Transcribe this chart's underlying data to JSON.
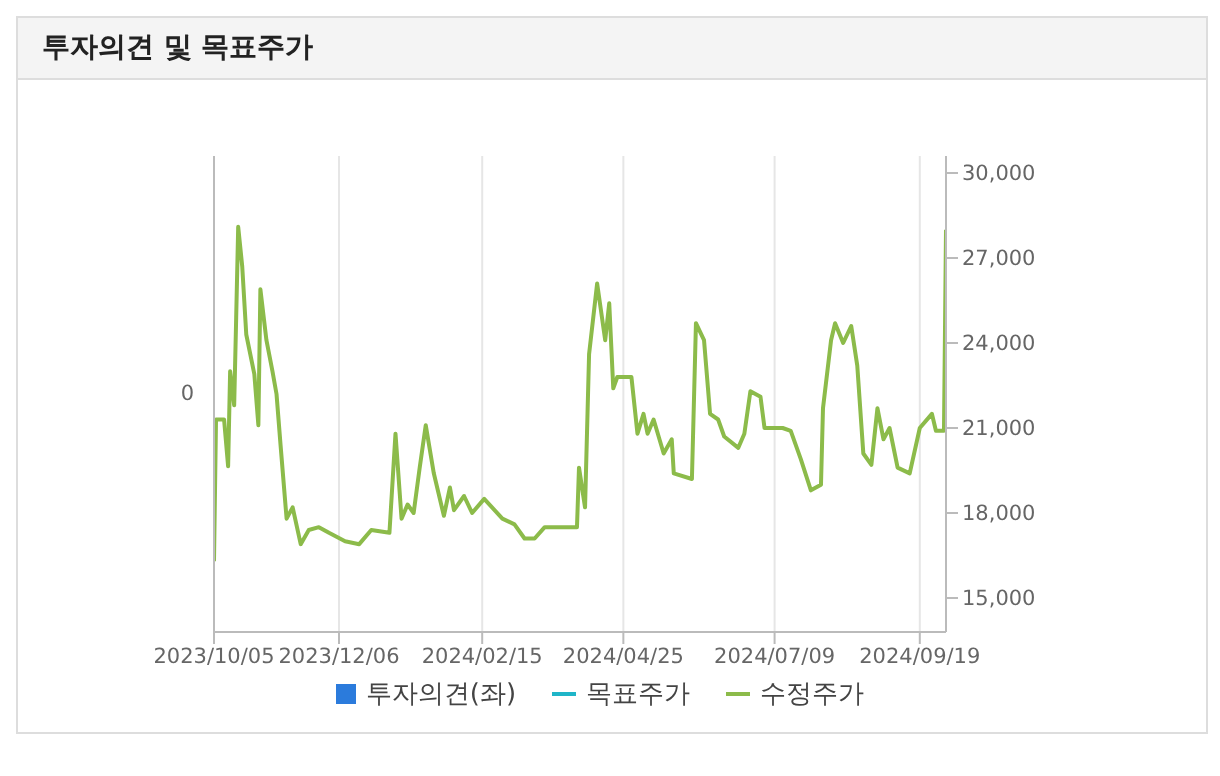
{
  "chart_data": {
    "type": "line",
    "title": "투자의견 및 목표주가",
    "x": [
      "2023-10-05",
      "2023-10-06",
      "2023-10-10",
      "2023-10-12",
      "2023-10-13",
      "2023-10-15",
      "2023-10-16",
      "2023-10-17",
      "2023-10-19",
      "2023-10-21",
      "2023-10-25",
      "2023-10-27",
      "2023-10-28",
      "2023-10-31",
      "2023-11-03",
      "2023-11-05",
      "2023-11-07",
      "2023-11-10",
      "2023-11-13",
      "2023-11-17",
      "2023-11-21",
      "2023-11-26",
      "2023-12-01",
      "2023-12-09",
      "2023-12-16",
      "2023-12-22",
      "2023-12-31",
      "2024-01-03",
      "2024-01-06",
      "2024-01-09",
      "2024-01-12",
      "2024-01-15",
      "2024-01-18",
      "2024-01-22",
      "2024-01-27",
      "2024-01-30",
      "2024-02-01",
      "2024-02-06",
      "2024-02-10",
      "2024-02-16",
      "2024-02-25",
      "2024-03-02",
      "2024-03-07",
      "2024-03-12",
      "2024-03-17",
      "2024-03-24",
      "2024-04-02",
      "2024-04-03",
      "2024-04-06",
      "2024-04-08",
      "2024-04-12",
      "2024-04-16",
      "2024-04-18",
      "2024-04-20",
      "2024-04-22",
      "2024-04-29",
      "2024-05-02",
      "2024-05-05",
      "2024-05-07",
      "2024-05-10",
      "2024-05-15",
      "2024-05-19",
      "2024-05-20",
      "2024-05-29",
      "2024-05-31",
      "2024-06-04",
      "2024-06-07",
      "2024-06-11",
      "2024-06-14",
      "2024-06-21",
      "2024-06-24",
      "2024-06-27",
      "2024-07-02",
      "2024-07-04",
      "2024-07-13",
      "2024-07-17",
      "2024-07-22",
      "2024-07-27",
      "2024-08-01",
      "2024-08-02",
      "2024-08-06",
      "2024-08-08",
      "2024-08-12",
      "2024-08-16",
      "2024-08-19",
      "2024-08-22",
      "2024-08-26",
      "2024-08-29",
      "2024-09-01",
      "2024-09-04",
      "2024-09-08",
      "2024-09-14",
      "2024-09-19",
      "2024-09-25",
      "2024-09-27",
      "2024-10-01",
      "2024-10-02"
    ],
    "series": [
      {
        "name": "투자의견(좌)",
        "type": "bar",
        "color": "#2b7bdc",
        "values": [
          null,
          null,
          null,
          null,
          null,
          null,
          null,
          null,
          null,
          null,
          null,
          null,
          null,
          null,
          null,
          null,
          null,
          null,
          null,
          null,
          null,
          null,
          null,
          null,
          null,
          null,
          null,
          null,
          null,
          null,
          null,
          null,
          null,
          null,
          null,
          null,
          null,
          null,
          null,
          null,
          null,
          null,
          null,
          null,
          null,
          null,
          null,
          null,
          null,
          null,
          null,
          null,
          null,
          null,
          null,
          null,
          null,
          null,
          null,
          null,
          null,
          null,
          null,
          null,
          null,
          null,
          null,
          null,
          null,
          null,
          null,
          null,
          null,
          null,
          null,
          null,
          null,
          null,
          null,
          null,
          null,
          null,
          null,
          null,
          null,
          null,
          null,
          null,
          null,
          null,
          null,
          null,
          null,
          null,
          null,
          null,
          null
        ]
      },
      {
        "name": "목표주가",
        "type": "line",
        "axis": "y2",
        "color": "#1fb5c8",
        "values": [
          null,
          null,
          null,
          null,
          null,
          null,
          null,
          null,
          null,
          null,
          null,
          null,
          null,
          null,
          null,
          null,
          null,
          null,
          null,
          null,
          null,
          null,
          null,
          null,
          null,
          null,
          null,
          null,
          null,
          null,
          null,
          null,
          null,
          null,
          null,
          null,
          null,
          null,
          null,
          null,
          null,
          null,
          null,
          null,
          null,
          null,
          null,
          null,
          null,
          null,
          null,
          null,
          null,
          null,
          null,
          null,
          null,
          null,
          null,
          null,
          null,
          null,
          null,
          null,
          null,
          null,
          null,
          null,
          null,
          null,
          null,
          null,
          null,
          null,
          null,
          null,
          null,
          null,
          null,
          null,
          null,
          null,
          null,
          null,
          null,
          null,
          null,
          null,
          null,
          null,
          null,
          null,
          null,
          null,
          null,
          null,
          null
        ]
      },
      {
        "name": "수정주가",
        "axis": "y2",
        "color": "#8cbb4a",
        "values": [
          16300,
          21300,
          21300,
          19650,
          23000,
          21800,
          24900,
          28100,
          26700,
          24300,
          22900,
          21100,
          25900,
          24100,
          23000,
          22200,
          20400,
          17800,
          18200,
          16900,
          17400,
          17500,
          17300,
          17000,
          16900,
          17400,
          17300,
          20800,
          17800,
          18300,
          18000,
          19600,
          21100,
          19400,
          17900,
          18900,
          18100,
          18600,
          18000,
          18500,
          17800,
          17600,
          17100,
          17100,
          17500,
          17500,
          17500,
          19600,
          18200,
          23600,
          26100,
          24100,
          25400,
          22400,
          22800,
          22800,
          20800,
          21500,
          20800,
          21300,
          20100,
          20600,
          19400,
          19200,
          24700,
          24100,
          21500,
          21300,
          20700,
          20300,
          20800,
          22300,
          22100,
          21000,
          21000,
          20900,
          19900,
          18800,
          19000,
          21700,
          24100,
          24700,
          24000,
          24600,
          23200,
          20100,
          19700,
          21700,
          20600,
          21000,
          19600,
          19400,
          21000,
          21500,
          20900,
          20900,
          28000
        ]
      }
    ],
    "xlim": [
      "2023-10-05",
      "2024-10-02"
    ],
    "xticks": [
      {
        "value": "2023-10-05",
        "label": "2023/10/05"
      },
      {
        "value": "2023-12-06",
        "label": "2023/12/06"
      },
      {
        "value": "2024-02-15",
        "label": "2024/02/15"
      },
      {
        "value": "2024-04-25",
        "label": "2024/04/25"
      },
      {
        "value": "2024-07-09",
        "label": "2024/07/09"
      },
      {
        "value": "2024-09-19",
        "label": "2024/09/19"
      }
    ],
    "annotations": [
      "0"
    ],
    "y2lim": [
      13800,
      30600
    ],
    "y2ticks": [
      {
        "value": 15000,
        "label": "15,000"
      },
      {
        "value": 18000,
        "label": "18,000"
      },
      {
        "value": 21000,
        "label": "21,000"
      },
      {
        "value": 24000,
        "label": "24,000"
      },
      {
        "value": 27000,
        "label": "27,000"
      },
      {
        "value": 30000,
        "label": "30,000"
      }
    ],
    "grid": "x",
    "legend": "bottom",
    "marker": "none",
    "line_style": "solid"
  }
}
